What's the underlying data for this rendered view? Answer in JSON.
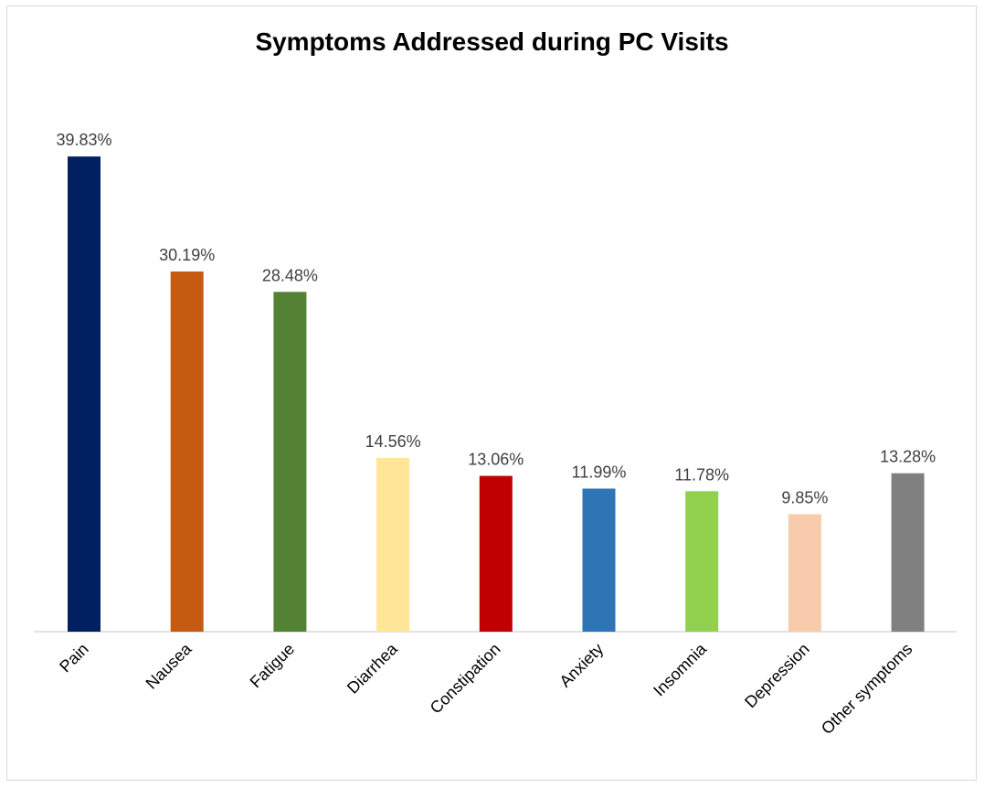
{
  "chart_data": {
    "type": "bar",
    "title": "Symptoms Addressed during PC Visits",
    "categories": [
      "Pain",
      "Nausea",
      "Fatigue",
      "Diarrhea",
      "Constipation",
      "Anxiety",
      "Insomnia",
      "Depression",
      "Other symptoms"
    ],
    "values": [
      39.83,
      30.19,
      28.48,
      14.56,
      13.06,
      11.99,
      11.78,
      9.85,
      13.28
    ],
    "data_labels": [
      "39.83%",
      "30.19%",
      "28.48%",
      "14.56%",
      "13.06%",
      "11.99%",
      "11.78%",
      "9.85%",
      "13.28%"
    ],
    "colors": [
      "#002060",
      "#C55A11",
      "#548235",
      "#FFE699",
      "#C00000",
      "#2E75B6",
      "#92D050",
      "#F8CBAD",
      "#808080"
    ],
    "xlabel": "",
    "ylabel": "",
    "ylim": [
      0,
      40
    ],
    "grid": false,
    "legend": "none"
  }
}
